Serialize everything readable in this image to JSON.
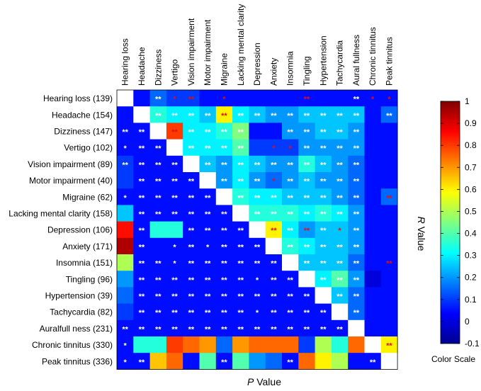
{
  "chart_data": {
    "type": "heatmap",
    "rows": [
      "Hearing loss (139)",
      "Headache (154)",
      "Dizziness (147)",
      "Vertigo (102)",
      "Vision impairment (89)",
      "Motor impairment (40)",
      "Migraine (62)",
      "Lacking mental clarity (158)",
      "Depression (106)",
      "Anxiety (171)",
      "Insomnia (151)",
      "Tingling (96)",
      "Hypertension (39)",
      "Tachycardia (82)",
      "Auralfull ness (231)",
      "Chronic tinnitus (330)",
      "Peak tinnitus (336)"
    ],
    "columns": [
      "Hearing loss",
      "Headache",
      "Dizziness",
      "Vertigo",
      "Vision impairment",
      "Motor impairment",
      "Migraine",
      "Lacking mental clarity",
      "Depression",
      "Anxiety",
      "Insomnia",
      "Tingling",
      "Hypertension",
      "Tachycardia",
      "Aural fullness",
      "Chronic tinnitus",
      "Peak tinnitus"
    ],
    "values": [
      [
        null,
        0.05,
        0.15,
        0.1,
        0.1,
        0.05,
        0.05,
        0.05,
        0.05,
        0.05,
        0.05,
        0.05,
        0.05,
        0.05,
        0.05,
        0.05,
        0.05
      ],
      [
        0.05,
        null,
        0.35,
        0.3,
        0.3,
        0.25,
        0.6,
        0.3,
        0.25,
        0.2,
        0.2,
        0.25,
        0.25,
        0.25,
        0.25,
        0.05,
        0.15
      ],
      [
        0.05,
        0.05,
        null,
        0.8,
        0.3,
        0.3,
        0.35,
        0.45,
        0.05,
        0.05,
        0.2,
        0.2,
        0.25,
        0.25,
        0.2,
        0.05,
        0.05
      ],
      [
        0.05,
        0.05,
        0.05,
        null,
        0.3,
        0.3,
        0.3,
        0.4,
        0.1,
        0.1,
        0.1,
        0.2,
        0.2,
        0.2,
        0.2,
        0.05,
        0.05
      ],
      [
        0.1,
        0.05,
        0.05,
        0.05,
        null,
        0.25,
        0.2,
        0.3,
        0.25,
        0.2,
        0.2,
        0.35,
        0.25,
        0.2,
        0.15,
        0.05,
        0.05
      ],
      [
        0.1,
        0.05,
        0.05,
        0.05,
        0.05,
        null,
        0.2,
        0.3,
        0.2,
        0.15,
        0.2,
        0.25,
        0.2,
        0.2,
        0.15,
        0.05,
        0.05
      ],
      [
        0.05,
        0.05,
        0.05,
        0.05,
        0.05,
        0.05,
        null,
        0.35,
        0.3,
        0.3,
        0.25,
        0.25,
        0.25,
        0.2,
        0.15,
        0.05,
        0.15
      ],
      [
        0.25,
        0.05,
        0.05,
        0.05,
        0.05,
        0.05,
        0.05,
        null,
        0.35,
        0.35,
        0.35,
        0.3,
        0.35,
        0.3,
        0.2,
        0.05,
        0.05
      ],
      [
        0.85,
        0.05,
        0.35,
        0.35,
        0.05,
        0.05,
        0.05,
        0.05,
        null,
        0.6,
        0.3,
        0.2,
        0.25,
        0.25,
        0.2,
        0.05,
        0.05
      ],
      [
        0.95,
        0.05,
        0.05,
        0.05,
        0.05,
        0.05,
        0.05,
        0.05,
        0.05,
        null,
        0.35,
        0.3,
        0.25,
        0.25,
        0.2,
        0.05,
        0.05
      ],
      [
        0.5,
        0.05,
        0.05,
        0.05,
        0.05,
        0.05,
        0.05,
        0.05,
        0.05,
        0.05,
        null,
        0.25,
        0.25,
        0.25,
        0.15,
        0.05,
        0.05
      ],
      [
        0.2,
        0.05,
        0.05,
        0.05,
        0.05,
        0.05,
        0.05,
        0.05,
        0.05,
        0.05,
        0.05,
        null,
        0.3,
        0.4,
        0.2,
        0.0,
        0.05
      ],
      [
        0.15,
        0.05,
        0.05,
        0.05,
        0.05,
        0.05,
        0.05,
        0.05,
        0.05,
        0.05,
        0.05,
        0.05,
        null,
        0.25,
        0.15,
        0.05,
        0.05
      ],
      [
        0.1,
        0.05,
        0.05,
        0.05,
        0.05,
        0.05,
        0.05,
        0.05,
        0.05,
        0.05,
        0.05,
        0.05,
        0.05,
        null,
        0.15,
        0.05,
        0.05
      ],
      [
        0.05,
        0.05,
        0.05,
        0.05,
        0.05,
        0.05,
        0.05,
        0.05,
        0.05,
        0.05,
        0.05,
        0.05,
        0.05,
        0.05,
        null,
        0.05,
        0.05
      ],
      [
        0.05,
        0.35,
        0.35,
        0.8,
        0.75,
        0.7,
        0.15,
        0.7,
        0.75,
        0.75,
        0.75,
        0.1,
        0.5,
        0.35,
        0.75,
        null,
        0.6
      ],
      [
        0.05,
        0.05,
        0.65,
        0.75,
        0.05,
        0.4,
        0.05,
        0.4,
        0.2,
        0.15,
        0.05,
        0.75,
        0.6,
        0.5,
        0.05,
        0.05,
        null
      ]
    ],
    "annotations": [
      [
        "",
        "",
        "**w",
        "*r",
        "**r",
        "",
        "*r",
        "",
        "",
        "",
        "",
        "**r",
        "",
        "",
        "**w",
        "*r",
        "*r"
      ],
      [
        "",
        "",
        "**w",
        "**w",
        "**w",
        "**w",
        "**r",
        "**w",
        "**w",
        "**w",
        "**w",
        "**w",
        "**w",
        "**w",
        "**w",
        "",
        "**w"
      ],
      [
        "**w",
        "**w",
        "",
        "**r",
        "**w",
        "**w",
        "**w",
        "**w",
        "",
        "",
        "**w",
        "**w",
        "**w",
        "**w",
        "**w",
        "",
        ""
      ],
      [
        "*w",
        "**w",
        "**w",
        "",
        "**w",
        "**w",
        "**w",
        "**w",
        "",
        "*r",
        "*r",
        "**w",
        "**w",
        "**w",
        "**w",
        "",
        ""
      ],
      [
        "**w",
        "**w",
        "**w",
        "**w",
        "",
        "**w",
        "**w",
        "**w",
        "**w",
        "**w",
        "**w",
        "**w",
        "**w",
        "**w",
        "**w",
        "",
        ""
      ],
      [
        "",
        "**w",
        "**w",
        "**w",
        "**w",
        "",
        "**w",
        "**w",
        "**w",
        "*r",
        "**w",
        "**w",
        "**w",
        "**w",
        "**w",
        "",
        ""
      ],
      [
        "*w",
        "**w",
        "**w",
        "**w",
        "**w",
        "**w",
        "",
        "**w",
        "**w",
        "**w",
        "**w",
        "**w",
        "**w",
        "**w",
        "**w",
        "",
        "**r"
      ],
      [
        "",
        "**w",
        "**w",
        "**w",
        "**w",
        "**w",
        "**w",
        "",
        "**w",
        "**w",
        "**w",
        "**w",
        "**w",
        "**w",
        "**w",
        "",
        ""
      ],
      [
        "",
        "**w",
        "",
        "",
        "**w",
        "**w",
        "**w",
        "**w",
        "",
        "**r",
        "**w",
        "**r",
        "**w",
        "*r",
        "**w",
        "",
        ""
      ],
      [
        "",
        "**w",
        "",
        "*w",
        "**w",
        "*w",
        "**w",
        "**w",
        "**w",
        "",
        "**w",
        "**w",
        "**w",
        "**w",
        "**w",
        "",
        ""
      ],
      [
        "",
        "**w",
        "**w",
        "*w",
        "**w",
        "**w",
        "**w",
        "**w",
        "**w",
        "**w",
        "",
        "**w",
        "**w",
        "**w",
        "**w",
        "",
        "**r"
      ],
      [
        "",
        "**w",
        "**w",
        "**w",
        "**w",
        "**w",
        "**w",
        "**w",
        "*w",
        "**w",
        "**w",
        "",
        "**w",
        "**w",
        "**w",
        "",
        ""
      ],
      [
        "",
        "**w",
        "**w",
        "**w",
        "**w",
        "**w",
        "**w",
        "**w",
        "**w",
        "**w",
        "**w",
        "**w",
        "",
        "**w",
        "**w",
        "",
        ""
      ],
      [
        "",
        "**w",
        "**w",
        "**w",
        "**w",
        "**w",
        "**w",
        "**w",
        "*w",
        "**w",
        "**w",
        "**w",
        "**w",
        "",
        "**w",
        "",
        ""
      ],
      [
        "**w",
        "**w",
        "**w",
        "**w",
        "**w",
        "**w",
        "**w",
        "**w",
        "**w",
        "**w",
        "**w",
        "**w",
        "**w",
        "**w",
        "",
        "",
        ""
      ],
      [
        "*w",
        "",
        "",
        "",
        "",
        "",
        "",
        "",
        "",
        "",
        "",
        "",
        "",
        "",
        "",
        "",
        "**r"
      ],
      [
        "*w",
        "**w",
        "",
        "",
        "",
        "",
        "**w",
        "",
        "",
        "",
        "**w",
        "",
        "",
        "",
        "",
        "**w",
        ""
      ]
    ],
    "colorbar": {
      "min": -0.1,
      "max": 1,
      "ticks": [
        "-0.1",
        "0",
        "0.1",
        "0.2",
        "0.3",
        "0.4",
        "0.5",
        "0.6",
        "0.7",
        "0.8",
        "0.9",
        "1"
      ],
      "label": "Color Scale"
    },
    "xlabel": "P Value",
    "ylabel": "R Value"
  }
}
